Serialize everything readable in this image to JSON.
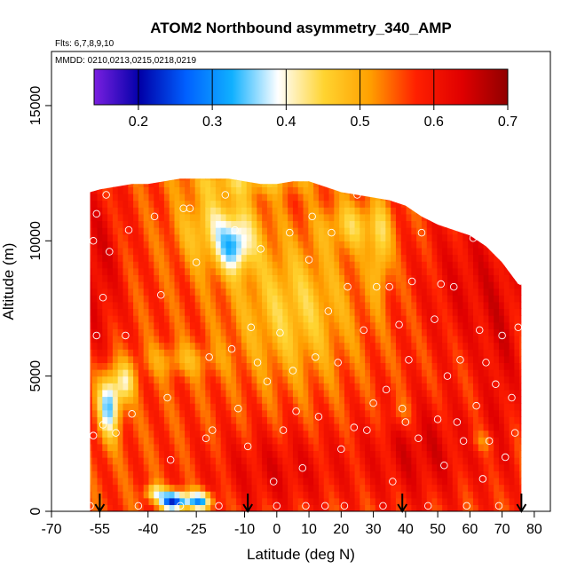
{
  "chart_data": {
    "type": "heatmap",
    "title": "ATOM2 Northbound asymmetry_340_AMP",
    "subtitle_flights": "Flts: 6,7,8,9,10",
    "subtitle_dates": "MMDD: 0210,0213,0215,0218,0219",
    "xlabel": "Latitude (deg N)",
    "ylabel": "Altitude (m)",
    "xlim": [
      -70,
      85
    ],
    "ylim": [
      0,
      17000
    ],
    "x_ticks": [
      -70,
      -55,
      -40,
      -25,
      -10,
      0,
      10,
      20,
      30,
      40,
      50,
      60,
      70,
      80
    ],
    "y_ticks": [
      0,
      5000,
      10000,
      15000
    ],
    "colorbar": {
      "min": 0.14,
      "max": 0.7,
      "ticks": [
        0.2,
        0.3,
        0.4,
        0.5,
        0.6,
        0.7
      ],
      "tick_labels": [
        "0.2",
        "0.3",
        "0.4",
        "0.5",
        "0.6",
        "0.7"
      ],
      "colors": [
        "#7a1fe0",
        "#0000a8",
        "#0060ff",
        "#10b0ff",
        "#ffffff",
        "#ffd430",
        "#ffa000",
        "#ff2000",
        "#e00000",
        "#900000"
      ]
    },
    "arrows_latitude": [
      -55,
      -9,
      39,
      76
    ],
    "profile_latitudes": [
      -58,
      -55,
      -50,
      -45,
      -40,
      -35,
      -30,
      -25,
      -20,
      -15,
      -10,
      -5,
      0,
      5,
      10,
      15,
      20,
      25,
      30,
      35,
      40,
      45,
      50,
      55,
      60,
      65,
      70,
      75
    ],
    "profile_top_altitudes": [
      11800,
      11900,
      12000,
      12100,
      12100,
      12200,
      12300,
      12300,
      12300,
      12300,
      12200,
      12100,
      12100,
      12200,
      12200,
      12000,
      11800,
      11700,
      11600,
      11500,
      11300,
      10900,
      10600,
      10400,
      10200,
      9800,
      9200,
      8400
    ],
    "observation_points": [
      {
        "lat": -58,
        "alt": 200
      },
      {
        "lat": -57,
        "alt": 2800
      },
      {
        "lat": -56,
        "alt": 6500
      },
      {
        "lat": -57,
        "alt": 10000
      },
      {
        "lat": -56,
        "alt": 11000
      },
      {
        "lat": -54,
        "alt": 7900
      },
      {
        "lat": -52,
        "alt": 9600
      },
      {
        "lat": -53,
        "alt": 11700
      },
      {
        "lat": -54,
        "alt": 3200
      },
      {
        "lat": -50,
        "alt": 2900
      },
      {
        "lat": -47,
        "alt": 6500
      },
      {
        "lat": -46,
        "alt": 10400
      },
      {
        "lat": -45,
        "alt": 3600
      },
      {
        "lat": -43,
        "alt": 200
      },
      {
        "lat": -38,
        "alt": 10900
      },
      {
        "lat": -36,
        "alt": 8000
      },
      {
        "lat": -34,
        "alt": 4200
      },
      {
        "lat": -33,
        "alt": 1900
      },
      {
        "lat": -30,
        "alt": 200
      },
      {
        "lat": -29,
        "alt": 11200
      },
      {
        "lat": -27,
        "alt": 11200
      },
      {
        "lat": -25,
        "alt": 9200
      },
      {
        "lat": -22,
        "alt": 2700
      },
      {
        "lat": -21,
        "alt": 5700
      },
      {
        "lat": -20,
        "alt": 3000
      },
      {
        "lat": -18,
        "alt": 200
      },
      {
        "lat": -16,
        "alt": 11700
      },
      {
        "lat": -14,
        "alt": 6000
      },
      {
        "lat": -13,
        "alt": 10400
      },
      {
        "lat": -12,
        "alt": 3800
      },
      {
        "lat": -9,
        "alt": 2400
      },
      {
        "lat": -8,
        "alt": 6800
      },
      {
        "lat": -6,
        "alt": 5500
      },
      {
        "lat": -5,
        "alt": 9700
      },
      {
        "lat": -3,
        "alt": 4800
      },
      {
        "lat": -1,
        "alt": 1100
      },
      {
        "lat": 0,
        "alt": 200
      },
      {
        "lat": 1,
        "alt": 6600
      },
      {
        "lat": 2,
        "alt": 3000
      },
      {
        "lat": 4,
        "alt": 10300
      },
      {
        "lat": 5,
        "alt": 5200
      },
      {
        "lat": 6,
        "alt": 3700
      },
      {
        "lat": 8,
        "alt": 1600
      },
      {
        "lat": 9,
        "alt": 200
      },
      {
        "lat": 10,
        "alt": 9300
      },
      {
        "lat": 11,
        "alt": 10900
      },
      {
        "lat": 12,
        "alt": 5700
      },
      {
        "lat": 13,
        "alt": 3500
      },
      {
        "lat": 15,
        "alt": 200
      },
      {
        "lat": 16,
        "alt": 7400
      },
      {
        "lat": 17,
        "alt": 10300
      },
      {
        "lat": 19,
        "alt": 5500
      },
      {
        "lat": 20,
        "alt": 2300
      },
      {
        "lat": 21,
        "alt": 200
      },
      {
        "lat": 22,
        "alt": 8300
      },
      {
        "lat": 24,
        "alt": 3100
      },
      {
        "lat": 25,
        "alt": 11700
      },
      {
        "lat": 27,
        "alt": 6700
      },
      {
        "lat": 28,
        "alt": 3000
      },
      {
        "lat": 30,
        "alt": 4000
      },
      {
        "lat": 31,
        "alt": 8300
      },
      {
        "lat": 33,
        "alt": 200
      },
      {
        "lat": 34,
        "alt": 4500
      },
      {
        "lat": 35,
        "alt": 8300
      },
      {
        "lat": 36,
        "alt": 1100
      },
      {
        "lat": 38,
        "alt": 6900
      },
      {
        "lat": 39,
        "alt": 3800
      },
      {
        "lat": 40,
        "alt": 3300
      },
      {
        "lat": 41,
        "alt": 5600
      },
      {
        "lat": 42,
        "alt": 8500
      },
      {
        "lat": 44,
        "alt": 2700
      },
      {
        "lat": 45,
        "alt": 10300
      },
      {
        "lat": 47,
        "alt": 200
      },
      {
        "lat": 49,
        "alt": 7100
      },
      {
        "lat": 50,
        "alt": 3400
      },
      {
        "lat": 51,
        "alt": 8400
      },
      {
        "lat": 52,
        "alt": 1700
      },
      {
        "lat": 53,
        "alt": 5000
      },
      {
        "lat": 55,
        "alt": 8300
      },
      {
        "lat": 56,
        "alt": 3300
      },
      {
        "lat": 57,
        "alt": 5600
      },
      {
        "lat": 58,
        "alt": 2600
      },
      {
        "lat": 59,
        "alt": 200
      },
      {
        "lat": 61,
        "alt": 10100
      },
      {
        "lat": 62,
        "alt": 3900
      },
      {
        "lat": 63,
        "alt": 6700
      },
      {
        "lat": 64,
        "alt": 1200
      },
      {
        "lat": 65,
        "alt": 5500
      },
      {
        "lat": 66,
        "alt": 2600
      },
      {
        "lat": 67,
        "alt": 10000
      },
      {
        "lat": 68,
        "alt": 4700
      },
      {
        "lat": 69,
        "alt": 200
      },
      {
        "lat": 70,
        "alt": 6500
      },
      {
        "lat": 71,
        "alt": 2000
      },
      {
        "lat": 72,
        "alt": 9800
      },
      {
        "lat": 73,
        "alt": 4200
      },
      {
        "lat": 74,
        "alt": 2900
      },
      {
        "lat": 75,
        "alt": 6800
      },
      {
        "lat": 76,
        "alt": 8500
      }
    ]
  }
}
